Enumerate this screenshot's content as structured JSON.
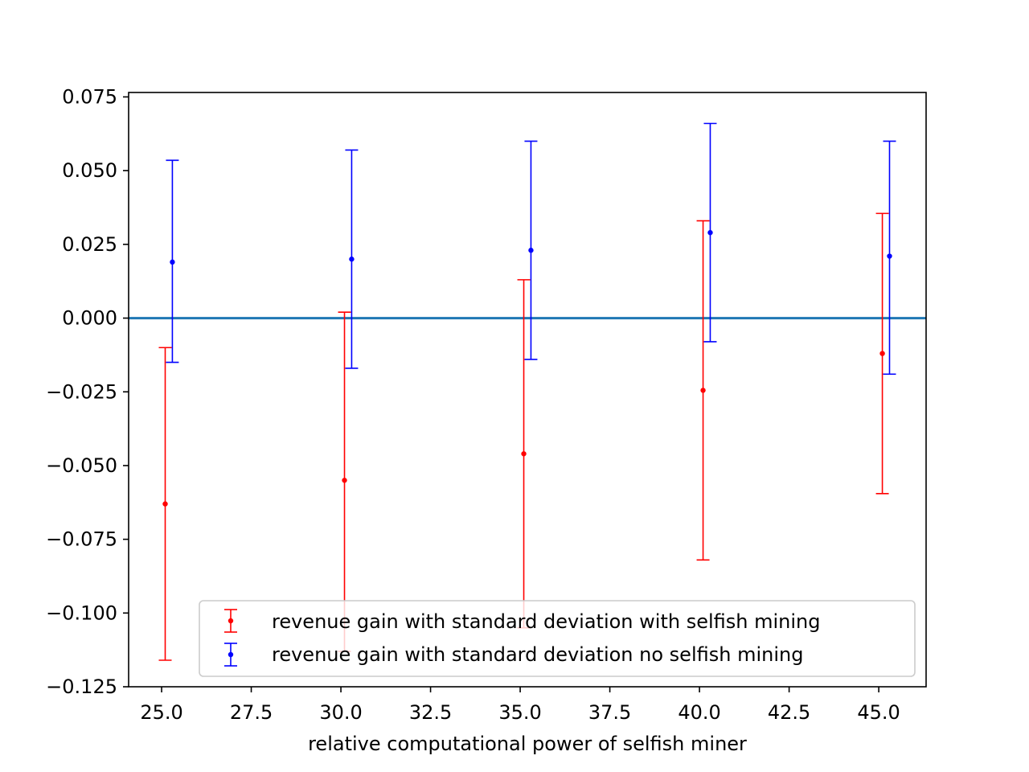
{
  "chart_data": {
    "type": "scatter",
    "title": "",
    "xlabel": "relative computational power of selfish miner",
    "ylabel": "",
    "xlim": [
      24.08,
      46.32
    ],
    "ylim": [
      -0.125,
      0.0765
    ],
    "xticks": [
      "25.0",
      "27.5",
      "30.0",
      "32.5",
      "35.0",
      "37.5",
      "40.0",
      "42.5",
      "45.0"
    ],
    "yticks": [
      "0.075",
      "0.050",
      "0.025",
      "0.000",
      "−0.025",
      "−0.050",
      "−0.075",
      "−0.100",
      "−0.125"
    ],
    "grid": false,
    "legend_position": "lower-right",
    "reference_line": {
      "y": 0.0,
      "color": "#1f77b4"
    },
    "series": [
      {
        "name": "revenue gain with standard deviation with selfish mining",
        "color": "#ff0000",
        "points": [
          {
            "x": 25.1,
            "y": -0.063,
            "lower": -0.116,
            "upper": -0.01
          },
          {
            "x": 30.1,
            "y": -0.055,
            "lower": -0.113,
            "upper": 0.002
          },
          {
            "x": 35.1,
            "y": -0.046,
            "lower": -0.105,
            "upper": 0.013
          },
          {
            "x": 40.1,
            "y": -0.0245,
            "lower": -0.082,
            "upper": 0.033
          },
          {
            "x": 45.1,
            "y": -0.012,
            "lower": -0.0595,
            "upper": 0.0355
          }
        ]
      },
      {
        "name": "revenue gain with standard deviation no selfish mining",
        "color": "#0000ff",
        "points": [
          {
            "x": 25.3,
            "y": 0.019,
            "lower": -0.015,
            "upper": 0.0535
          },
          {
            "x": 30.3,
            "y": 0.02,
            "lower": -0.017,
            "upper": 0.057
          },
          {
            "x": 35.3,
            "y": 0.023,
            "lower": -0.014,
            "upper": 0.06
          },
          {
            "x": 40.3,
            "y": 0.029,
            "lower": -0.008,
            "upper": 0.066
          },
          {
            "x": 45.3,
            "y": 0.021,
            "lower": -0.019,
            "upper": 0.06
          }
        ]
      }
    ]
  }
}
